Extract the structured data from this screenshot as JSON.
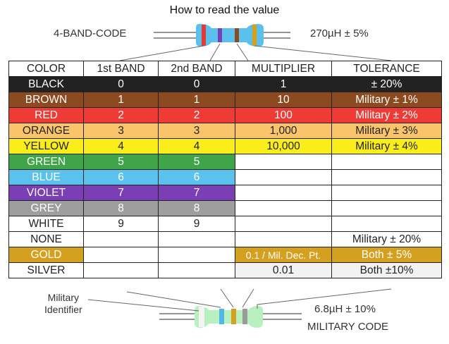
{
  "title": "How to read the value",
  "top": {
    "code_label": "4-BAND-CODE",
    "value": "270µH ± 5%",
    "bands": [
      "#e53935",
      "#7b3fb8",
      "#8b4a1f",
      "#d4a020"
    ],
    "body_color": "#5bc0ec"
  },
  "bottom": {
    "identifier_label_1": "Military",
    "identifier_label_2": "Identifier",
    "value": "6.8µH ± 10%",
    "code_label": "MILITARY CODE",
    "bands": [
      "#f4f4f4",
      "#4fb8e8",
      "#d4a020",
      "#9a9a9a"
    ],
    "body_color": "#b8f0c0"
  },
  "headers": [
    "COLOR",
    "1st BAND",
    "2nd BAND",
    "MULTIPLIER",
    "TOLERANCE"
  ],
  "rows": [
    {
      "cells": [
        "BLACK",
        "0",
        "0",
        "1",
        "± 20%"
      ],
      "bg": "#222222",
      "fg": "#ffffff",
      "colored": 5
    },
    {
      "cells": [
        "BROWN",
        "1",
        "1",
        "10",
        "Military ± 1%"
      ],
      "bg": "#8b4a1f",
      "fg": "#ffffff",
      "colored": 5
    },
    {
      "cells": [
        "RED",
        "2",
        "2",
        "100",
        "Military ± 2%"
      ],
      "bg": "#ee3b36",
      "fg": "#ffffff",
      "colored": 5
    },
    {
      "cells": [
        "ORANGE",
        "3",
        "3",
        "1,000",
        "Military ± 3%"
      ],
      "bg": "#f9c46b",
      "fg": "#222222",
      "colored": 5
    },
    {
      "cells": [
        "YELLOW",
        "4",
        "4",
        "10,000",
        "Military ± 4%"
      ],
      "bg": "#faee1a",
      "fg": "#222222",
      "colored": 5
    },
    {
      "cells": [
        "GREEN",
        "5",
        "5",
        "",
        ""
      ],
      "bg": "#3fa548",
      "fg": "#ffffff",
      "colored": 3
    },
    {
      "cells": [
        "BLUE",
        "6",
        "6",
        "",
        ""
      ],
      "bg": "#5ac2ec",
      "fg": "#ffffff",
      "colored": 3
    },
    {
      "cells": [
        "VIOLET",
        "7",
        "7",
        "",
        ""
      ],
      "bg": "#7a3fb4",
      "fg": "#ffffff",
      "colored": 3
    },
    {
      "cells": [
        "GREY",
        "8",
        "8",
        "",
        ""
      ],
      "bg": "#9e9e9e",
      "fg": "#ffffff",
      "colored": 3
    },
    {
      "cells": [
        "WHITE",
        "9",
        "9",
        "",
        ""
      ],
      "bg": "#ffffff",
      "fg": "#222222",
      "colored": 3
    },
    {
      "cells": [
        "NONE",
        "",
        "",
        "",
        "Military ± 20%"
      ],
      "bg": "#ffffff",
      "fg": "#222222",
      "colored": 5
    },
    {
      "cells": [
        "GOLD",
        "",
        "",
        "0.1 / Mil. Dec. Pt.",
        "Both ± 5%"
      ],
      "bg": "#d4a020",
      "fg": "#ffffff",
      "colored": 1,
      "extra_cols": [
        3,
        4
      ]
    },
    {
      "cells": [
        "SILVER",
        "",
        "",
        "0.01",
        "Both ±10%"
      ],
      "bg": "#ffffff",
      "fg": "#222222",
      "colored": 1,
      "extra_cols": [
        3,
        4
      ],
      "extra_bg": "#f2f2f2"
    }
  ]
}
